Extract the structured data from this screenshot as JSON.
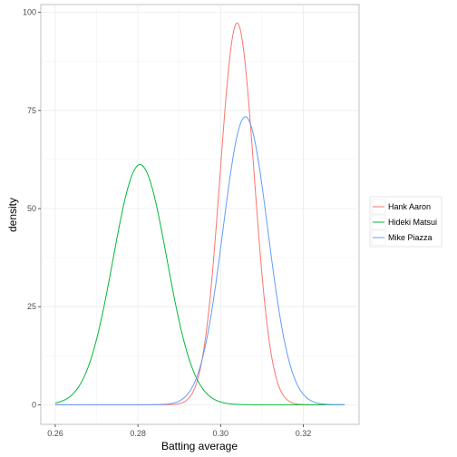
{
  "chart_data": {
    "type": "line",
    "xlabel": "Batting average",
    "ylabel": "density",
    "xlim": [
      0.2565,
      0.3335
    ],
    "ylim": [
      -5,
      102
    ],
    "x_ticks": [
      0.26,
      0.28,
      0.3,
      0.32
    ],
    "x_tick_labels": [
      "0.26",
      "0.28",
      "0.30",
      "0.32"
    ],
    "y_ticks": [
      0,
      25,
      50,
      75,
      100
    ],
    "y_tick_labels": [
      "0",
      "25",
      "50",
      "75",
      "100"
    ],
    "grid": true,
    "legend_position": "right",
    "series": [
      {
        "name": "Hank Aaron",
        "color": "#F8766D",
        "distribution": "normal",
        "mean": 0.304,
        "peak_density": 97.3
      },
      {
        "name": "Hideki Matsui",
        "color": "#00BA38",
        "distribution": "normal",
        "mean": 0.2805,
        "peak_density": 61.2
      },
      {
        "name": "Mike Piazza",
        "color": "#619CFF",
        "distribution": "normal",
        "mean": 0.306,
        "peak_density": 73.4
      }
    ],
    "x_range": [
      0.26,
      0.33
    ]
  }
}
